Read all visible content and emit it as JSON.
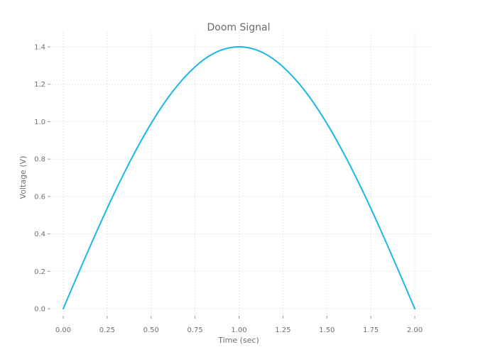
{
  "chart_data": {
    "type": "line",
    "title": "Doom Signal",
    "xlabel": "Time (sec)",
    "ylabel": "Voltage (V)",
    "xlim": [
      0,
      2
    ],
    "ylim": [
      0,
      1.4
    ],
    "x_ticks": [
      "0.00",
      "0.25",
      "0.50",
      "0.75",
      "1.00",
      "1.25",
      "1.50",
      "1.75",
      "2.00"
    ],
    "y_ticks": [
      "0.0",
      "0.2",
      "0.4",
      "0.6",
      "0.8",
      "1.0",
      "1.2",
      "1.4"
    ],
    "grid": true,
    "series": [
      {
        "color": "#1ab6e8",
        "x": [
          0,
          0.1,
          0.2,
          0.3,
          0.4,
          0.5,
          0.6,
          0.7,
          0.8,
          0.9,
          1.0,
          1.1,
          1.2,
          1.3,
          1.4,
          1.5,
          1.6,
          1.7,
          1.8,
          1.9,
          2.0
        ],
        "y": [
          0,
          0.219,
          0.433,
          0.636,
          0.823,
          0.99,
          1.133,
          1.247,
          1.332,
          1.383,
          1.4,
          1.383,
          1.332,
          1.247,
          1.133,
          0.99,
          0.823,
          0.636,
          0.433,
          0.219,
          0
        ]
      }
    ]
  }
}
